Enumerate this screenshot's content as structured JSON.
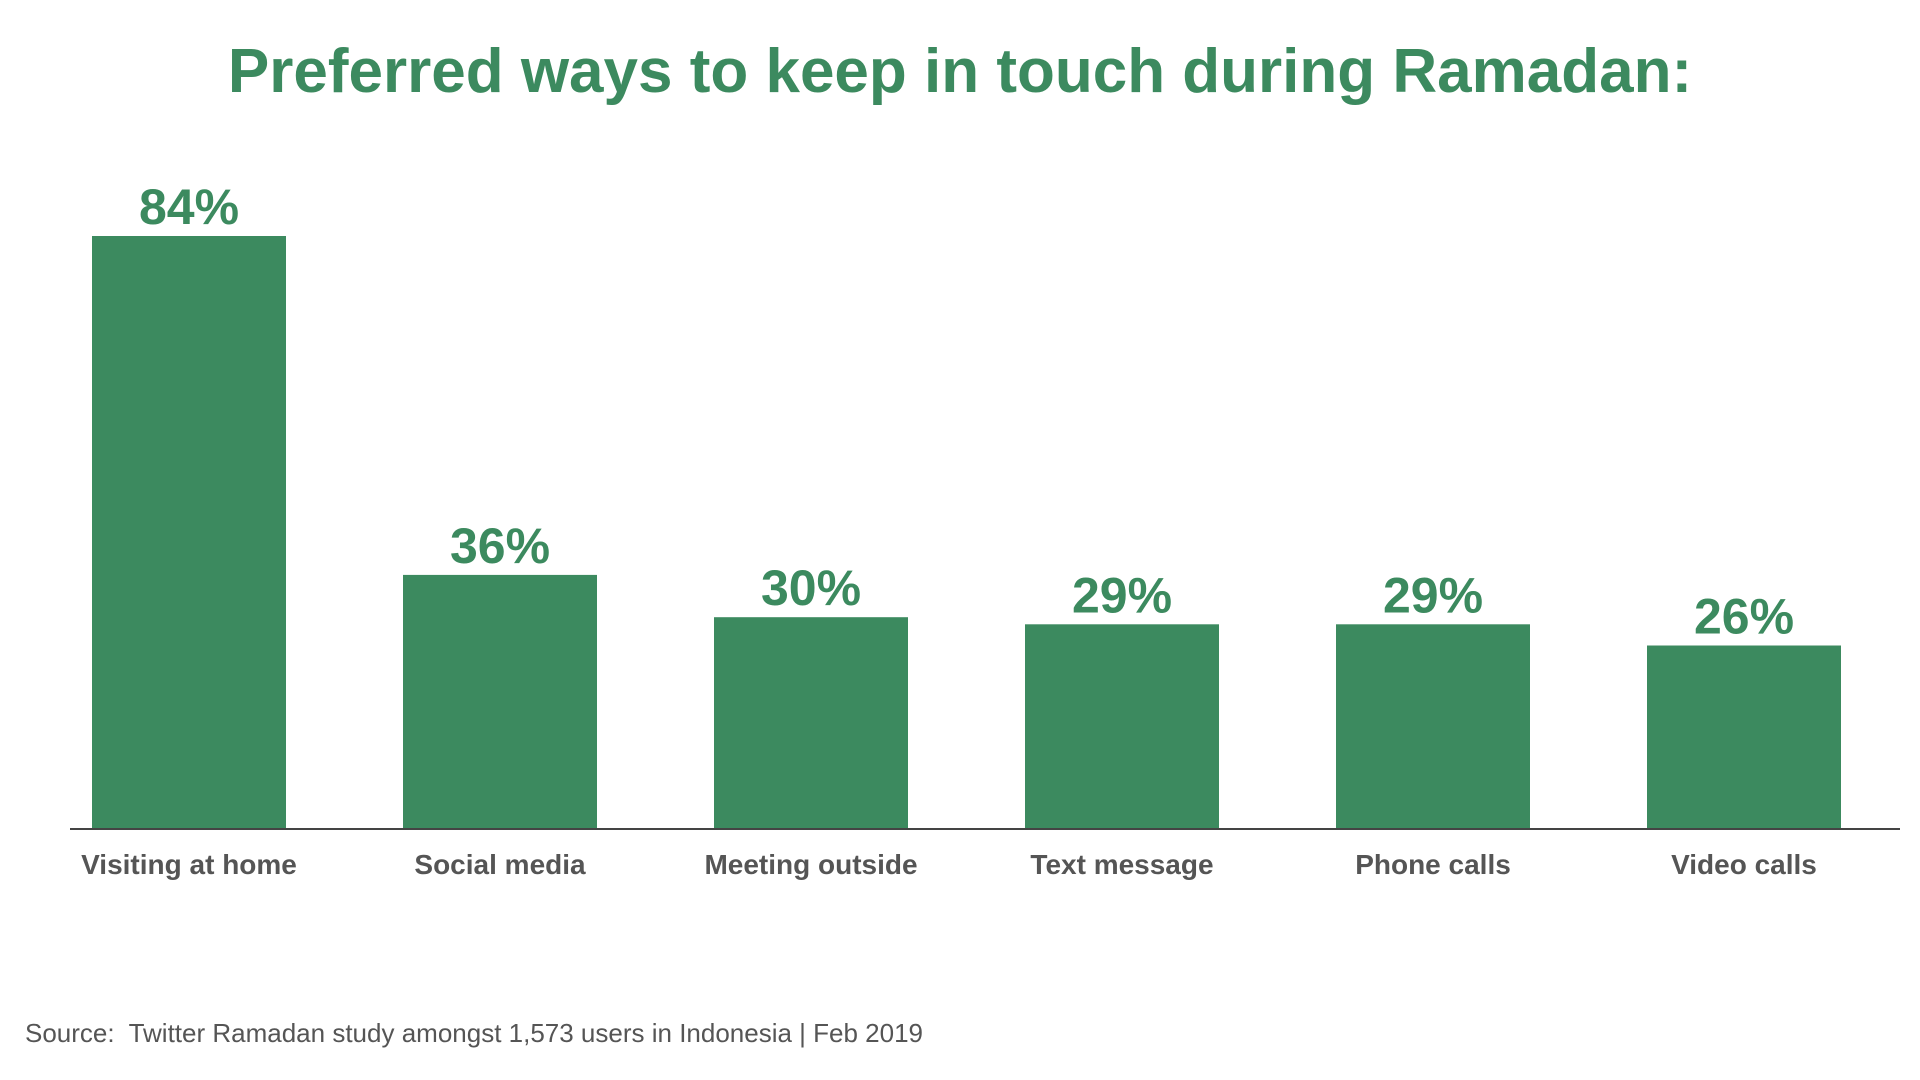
{
  "source_note": "Source:  Twitter Ramadan study amongst 1,573 users in Indonesia | Feb 2019",
  "colors": {
    "bar": "#3c8a5f",
    "title": "#3c8a5f",
    "value_label": "#3c8a5f",
    "category_label": "#555555",
    "axis": "#444444"
  },
  "chart_data": {
    "type": "bar",
    "title": "Preferred ways to keep in touch during Ramadan:",
    "xlabel": "",
    "ylabel": "",
    "ylim": [
      0,
      100
    ],
    "grid": false,
    "categories": [
      "Visiting at home",
      "Social media",
      "Meeting outside",
      "Text message",
      "Phone calls",
      "Video calls"
    ],
    "values": [
      84,
      36,
      30,
      29,
      29,
      26
    ],
    "value_labels": [
      "84%",
      "36%",
      "30%",
      "29%",
      "29%",
      "26%"
    ]
  }
}
